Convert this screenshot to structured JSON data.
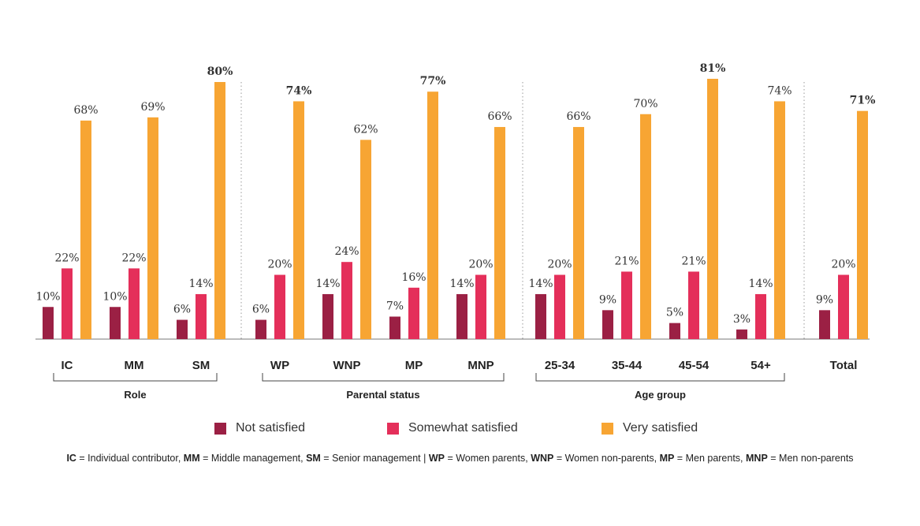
{
  "colors": {
    "not_satisfied": "#9b2044",
    "somewhat_satisfied": "#e42f5a",
    "very_satisfied": "#f7a533"
  },
  "chart_data": {
    "type": "bar",
    "ylim": [
      0,
      85
    ],
    "grid": false,
    "legend_position": "bottom",
    "series": [
      {
        "name": "Not satisfied"
      },
      {
        "name": "Somewhat satisfied"
      },
      {
        "name": "Very satisfied"
      }
    ],
    "groups": [
      {
        "label": "Role",
        "categories": [
          {
            "label": "IC",
            "values": [
              10,
              22,
              68
            ],
            "labels": [
              "10%",
              "22%",
              "68%"
            ],
            "bold": [
              false,
              false,
              false
            ]
          },
          {
            "label": "MM",
            "values": [
              10,
              22,
              69
            ],
            "labels": [
              "10%",
              "22%",
              "69%"
            ],
            "bold": [
              false,
              false,
              false
            ]
          },
          {
            "label": "SM",
            "values": [
              6,
              14,
              80
            ],
            "labels": [
              "6%",
              "14%",
              "80%"
            ],
            "bold": [
              false,
              false,
              true
            ]
          }
        ]
      },
      {
        "label": "Parental status",
        "categories": [
          {
            "label": "WP",
            "values": [
              6,
              20,
              74
            ],
            "labels": [
              "6%",
              "20%",
              "74%"
            ],
            "bold": [
              false,
              false,
              true
            ]
          },
          {
            "label": "WNP",
            "values": [
              14,
              24,
              62
            ],
            "labels": [
              "14%",
              "24%",
              "62%"
            ],
            "bold": [
              false,
              false,
              false
            ]
          },
          {
            "label": "MP",
            "values": [
              7,
              16,
              77
            ],
            "labels": [
              "7%",
              "16%",
              "77%"
            ],
            "bold": [
              false,
              false,
              true
            ]
          },
          {
            "label": "MNP",
            "values": [
              14,
              20,
              66
            ],
            "labels": [
              "14%",
              "20%",
              "66%"
            ],
            "bold": [
              false,
              false,
              false
            ]
          }
        ]
      },
      {
        "label": "Age group",
        "categories": [
          {
            "label": "25-34",
            "values": [
              14,
              20,
              66
            ],
            "labels": [
              "14%",
              "20%",
              "66%"
            ],
            "bold": [
              false,
              false,
              false
            ]
          },
          {
            "label": "35-44",
            "values": [
              9,
              21,
              70
            ],
            "labels": [
              "9%",
              "21%",
              "70%"
            ],
            "bold": [
              false,
              false,
              false
            ]
          },
          {
            "label": "45-54",
            "values": [
              5,
              21,
              81
            ],
            "labels": [
              "5%",
              "21%",
              "81%"
            ],
            "bold": [
              false,
              false,
              true
            ]
          },
          {
            "label": "54+",
            "values": [
              3,
              14,
              74
            ],
            "labels": [
              "3%",
              "14%",
              "74%"
            ],
            "bold": [
              false,
              false,
              false
            ]
          }
        ]
      },
      {
        "label": "",
        "categories": [
          {
            "label": "Total",
            "values": [
              9,
              20,
              71
            ],
            "labels": [
              "9%",
              "20%",
              "71%"
            ],
            "bold": [
              false,
              false,
              true
            ]
          }
        ]
      }
    ]
  },
  "legend": {
    "items": [
      {
        "label": "Not satisfied"
      },
      {
        "label": "Somewhat satisfied"
      },
      {
        "label": "Very satisfied"
      }
    ]
  },
  "footnote": {
    "parts": [
      {
        "abbr": "IC",
        "text": " = Individual contributor,  "
      },
      {
        "abbr": "MM",
        "text": " = Middle management, "
      },
      {
        "abbr": "SM",
        "text": " = Senior management | "
      },
      {
        "abbr": "WP",
        "text": " = Women parents, "
      },
      {
        "abbr": "WNP",
        "text": " = Women non-parents, "
      },
      {
        "abbr": "MP",
        "text": " = Men parents, "
      },
      {
        "abbr": "MNP",
        "text": " = Men non-parents"
      }
    ]
  }
}
